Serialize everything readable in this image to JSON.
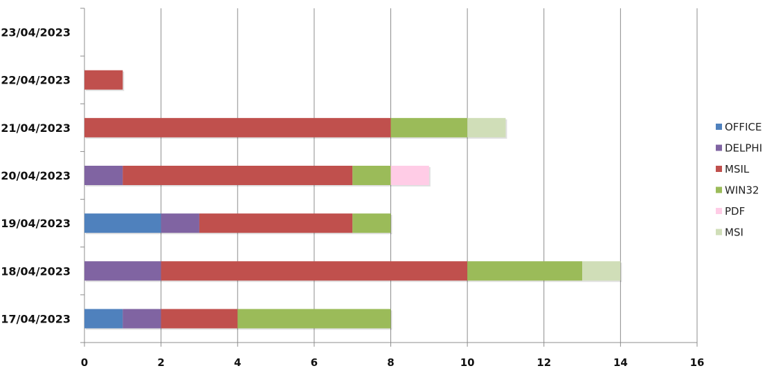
{
  "chart_data": {
    "type": "bar",
    "orientation": "horizontal",
    "stacked": true,
    "categories": [
      "17/04/2023",
      "18/04/2023",
      "19/04/2023",
      "20/04/2023",
      "21/04/2023",
      "22/04/2023",
      "23/04/2023"
    ],
    "series": [
      {
        "name": "OFFICE",
        "color": "#4f81bd",
        "values": [
          1,
          0,
          2,
          0,
          0,
          0,
          0
        ]
      },
      {
        "name": "DELPHI",
        "color": "#8064a2",
        "values": [
          1,
          2,
          1,
          1,
          0,
          0,
          0
        ]
      },
      {
        "name": "MSIL",
        "color": "#c0504d",
        "values": [
          2,
          8,
          4,
          6,
          8,
          1,
          0
        ]
      },
      {
        "name": "WIN32",
        "color": "#9bbb59",
        "values": [
          4,
          3,
          1,
          1,
          2,
          0,
          0
        ]
      },
      {
        "name": "PDF",
        "color": "#ffcce6",
        "values": [
          0,
          0,
          0,
          1,
          0,
          0,
          0
        ]
      },
      {
        "name": "MSI",
        "color": "#d0deb8",
        "values": [
          0,
          1,
          0,
          0,
          1,
          0,
          0
        ]
      }
    ],
    "xlim": [
      0,
      16
    ],
    "xticks": [
      0,
      2,
      4,
      6,
      8,
      10,
      12,
      14,
      16
    ],
    "grid": true,
    "legend_position": "right"
  }
}
